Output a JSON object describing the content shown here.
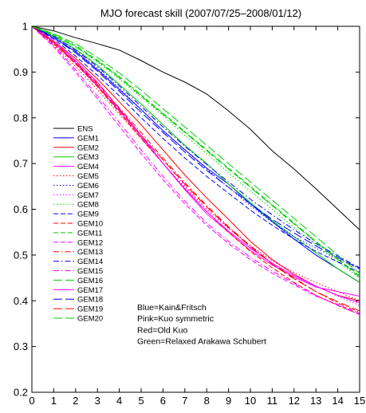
{
  "chart_data": {
    "type": "line",
    "title": "MJO forecast skill (2007/07/25–2008/01/12)",
    "xlabel": "",
    "ylabel": "",
    "x": [
      0,
      1,
      2,
      3,
      4,
      5,
      6,
      7,
      8,
      9,
      10,
      11,
      12,
      13,
      14,
      15
    ],
    "xlim": [
      0,
      15
    ],
    "ylim": [
      0.2,
      1.0
    ],
    "xticks": [
      "0",
      "1",
      "2",
      "3",
      "4",
      "5",
      "6",
      "7",
      "8",
      "9",
      "10",
      "11",
      "12",
      "13",
      "14",
      "15"
    ],
    "yticks": [
      "0.2",
      "0.3",
      "0.4",
      "0.5",
      "0.6",
      "0.7",
      "0.8",
      "0.9",
      "1"
    ],
    "grid": false,
    "legend_position": "left",
    "series": [
      {
        "name": "ENS",
        "color": "#000000",
        "dash": "solid",
        "values": [
          1.0,
          0.99,
          0.975,
          0.962,
          0.948,
          0.925,
          0.9,
          0.878,
          0.852,
          0.815,
          0.775,
          0.728,
          0.688,
          0.645,
          0.6,
          0.555
        ]
      },
      {
        "name": "GEM1",
        "color": "#0000ff",
        "dash": "solid",
        "values": [
          1.0,
          0.975,
          0.945,
          0.905,
          0.862,
          0.818,
          0.772,
          0.73,
          0.69,
          0.655,
          0.612,
          0.573,
          0.535,
          0.5,
          0.47,
          0.44
        ]
      },
      {
        "name": "GEM2",
        "color": "#ff0000",
        "dash": "solid",
        "values": [
          1.0,
          0.968,
          0.93,
          0.885,
          0.835,
          0.785,
          0.73,
          0.675,
          0.625,
          0.578,
          0.53,
          0.49,
          0.458,
          0.432,
          0.412,
          0.4
        ]
      },
      {
        "name": "GEM3",
        "color": "#00cc00",
        "dash": "solid",
        "values": [
          1.0,
          0.978,
          0.95,
          0.915,
          0.873,
          0.83,
          0.785,
          0.74,
          0.7,
          0.655,
          0.615,
          0.575,
          0.54,
          0.505,
          0.47,
          0.44
        ]
      },
      {
        "name": "GEM4",
        "color": "#ff00ff",
        "dash": "solid",
        "values": [
          1.0,
          0.968,
          0.925,
          0.878,
          0.82,
          0.762,
          0.7,
          0.643,
          0.59,
          0.55,
          0.51,
          0.478,
          0.452,
          0.43,
          0.42,
          0.41
        ]
      },
      {
        "name": "GEM5",
        "color": "#ff0000",
        "dash": "dot",
        "values": [
          1.0,
          0.96,
          0.912,
          0.862,
          0.808,
          0.755,
          0.7,
          0.648,
          0.6,
          0.558,
          0.52,
          0.488,
          0.462,
          0.44,
          0.42,
          0.4
        ]
      },
      {
        "name": "GEM6",
        "color": "#0000ff",
        "dash": "dot",
        "values": [
          1.0,
          0.975,
          0.945,
          0.908,
          0.865,
          0.818,
          0.772,
          0.73,
          0.688,
          0.648,
          0.608,
          0.572,
          0.54,
          0.515,
          0.492,
          0.47
        ]
      },
      {
        "name": "GEM7",
        "color": "#ff00ff",
        "dash": "dot",
        "values": [
          1.0,
          0.962,
          0.918,
          0.868,
          0.815,
          0.762,
          0.708,
          0.652,
          0.6,
          0.558,
          0.52,
          0.488,
          0.458,
          0.432,
          0.41,
          0.39
        ]
      },
      {
        "name": "GEM8",
        "color": "#00cc00",
        "dash": "dot",
        "values": [
          1.0,
          0.98,
          0.955,
          0.922,
          0.885,
          0.845,
          0.805,
          0.762,
          0.722,
          0.68,
          0.64,
          0.6,
          0.56,
          0.522,
          0.485,
          0.45
        ]
      },
      {
        "name": "GEM9",
        "color": "#0000ff",
        "dash": "dash",
        "values": [
          1.0,
          0.972,
          0.935,
          0.893,
          0.848,
          0.8,
          0.755,
          0.712,
          0.672,
          0.635,
          0.598,
          0.565,
          0.535,
          0.508,
          0.485,
          0.462
        ]
      },
      {
        "name": "GEM10",
        "color": "#ff0000",
        "dash": "dash",
        "values": [
          1.0,
          0.962,
          0.918,
          0.868,
          0.812,
          0.755,
          0.7,
          0.645,
          0.595,
          0.55,
          0.508,
          0.472,
          0.44,
          0.412,
          0.39,
          0.37
        ]
      },
      {
        "name": "GEM11",
        "color": "#00cc00",
        "dash": "dash",
        "values": [
          1.0,
          0.982,
          0.958,
          0.926,
          0.89,
          0.85,
          0.81,
          0.77,
          0.73,
          0.69,
          0.65,
          0.61,
          0.57,
          0.53,
          0.492,
          0.455
        ]
      },
      {
        "name": "GEM12",
        "color": "#ff00ff",
        "dash": "dash",
        "values": [
          1.0,
          0.955,
          0.9,
          0.842,
          0.782,
          0.722,
          0.665,
          0.612,
          0.565,
          0.525,
          0.49,
          0.46,
          0.435,
          0.41,
          0.392,
          0.372
        ]
      },
      {
        "name": "GEM13",
        "color": "#ff0000",
        "dash": "dashdot",
        "values": [
          1.0,
          0.965,
          0.922,
          0.875,
          0.822,
          0.768,
          0.712,
          0.658,
          0.608,
          0.562,
          0.52,
          0.482,
          0.45,
          0.42,
          0.395,
          0.375
        ]
      },
      {
        "name": "GEM14",
        "color": "#0000ff",
        "dash": "dashdot",
        "values": [
          1.0,
          0.978,
          0.948,
          0.912,
          0.87,
          0.825,
          0.78,
          0.738,
          0.698,
          0.66,
          0.622,
          0.588,
          0.555,
          0.525,
          0.498,
          0.472
        ]
      },
      {
        "name": "GEM15",
        "color": "#ff00ff",
        "dash": "dashdot",
        "values": [
          1.0,
          0.958,
          0.905,
          0.848,
          0.79,
          0.73,
          0.672,
          0.618,
          0.57,
          0.53,
          0.495,
          0.465,
          0.438,
          0.412,
          0.39,
          0.37
        ]
      },
      {
        "name": "GEM16",
        "color": "#00cc00",
        "dash": "longdash",
        "values": [
          1.0,
          0.984,
          0.962,
          0.932,
          0.898,
          0.86,
          0.82,
          0.78,
          0.74,
          0.7,
          0.66,
          0.62,
          0.58,
          0.54,
          0.5,
          0.46
        ]
      },
      {
        "name": "GEM17",
        "color": "#ff00ff",
        "dash": "solid",
        "values": [
          1.0,
          0.965,
          0.92,
          0.87,
          0.815,
          0.758,
          0.7,
          0.645,
          0.595,
          0.552,
          0.515,
          0.482,
          0.455,
          0.432,
          0.412,
          0.395
        ]
      },
      {
        "name": "GEM18",
        "color": "#0000ff",
        "dash": "longdash",
        "values": [
          1.0,
          0.975,
          0.942,
          0.902,
          0.858,
          0.812,
          0.768,
          0.725,
          0.685,
          0.648,
          0.612,
          0.578,
          0.548,
          0.52,
          0.495,
          0.47
        ]
      },
      {
        "name": "GEM19",
        "color": "#ff0000",
        "dash": "longdash",
        "values": [
          1.0,
          0.965,
          0.922,
          0.872,
          0.818,
          0.762,
          0.708,
          0.655,
          0.605,
          0.56,
          0.518,
          0.48,
          0.448,
          0.42,
          0.398,
          0.378
        ]
      },
      {
        "name": "GEM20",
        "color": "#00cc00",
        "dash": "longdash",
        "values": [
          1.0,
          0.98,
          0.955,
          0.924,
          0.888,
          0.848,
          0.808,
          0.768,
          0.728,
          0.688,
          0.648,
          0.608,
          0.568,
          0.528,
          0.49,
          0.452
        ]
      }
    ],
    "annotations": [
      "Blue=Kain&Fritsch",
      "Pink=Kuo symmetric",
      "Red=Old Kuo",
      "Green=Relaxed Arakawa Schubert"
    ]
  }
}
